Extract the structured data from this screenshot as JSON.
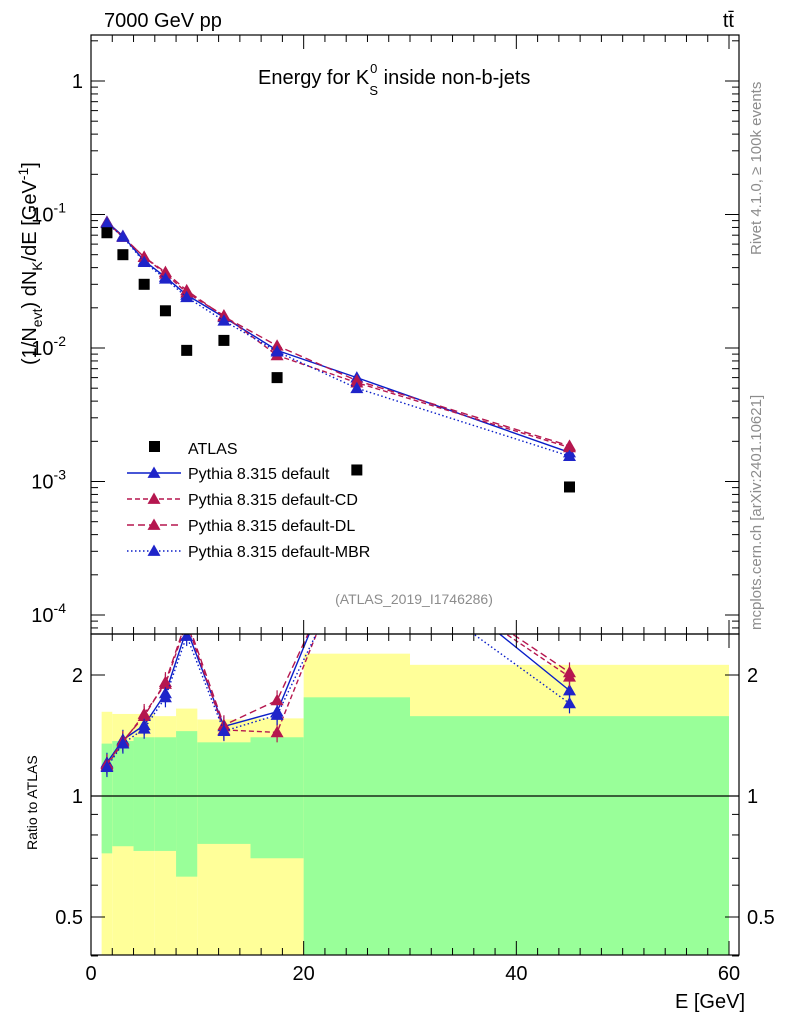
{
  "header": {
    "energy_label": "7000 GeV pp",
    "process_label": "tt̄",
    "title_main": "Energy for K",
    "title_sup": "0",
    "title_sub": "S",
    "title_rest": " inside non-b-jets",
    "ref_id": "(ATLAS_2019_I1746286)",
    "side_top": "Rivet 4.1.0, ≥ 100k events",
    "side_bottom": "mcplots.cern.ch [arXiv:2401.10621]"
  },
  "chart_data": {
    "type": "scatter",
    "xlabel": "E [GeV]",
    "ylabel": "(1/N_evt) dN_K/dE [GeV^-1]",
    "ylabel_ratio": "Ratio to ATLAS",
    "xlim": [
      0,
      61
    ],
    "ylim": [
      7e-05,
      2
    ],
    "ylim_ratio": [
      0.34,
      2.25
    ],
    "y_scale": "log",
    "x_ticks": [
      "0",
      "20",
      "40",
      "60"
    ],
    "y_ticks": [
      {
        "mant": "1",
        "exp": ""
      },
      {
        "mant": "10",
        "exp": "-1"
      },
      {
        "mant": "10",
        "exp": "-2"
      },
      {
        "mant": "10",
        "exp": "-3"
      },
      {
        "mant": "10",
        "exp": "-4"
      }
    ],
    "ratio_ticks": [
      "0.5",
      "1",
      "2"
    ],
    "bins": [
      {
        "lo": 1,
        "hi": 2,
        "inner": [
          0.72,
          1.35
        ],
        "outer": [
          0.32,
          1.62
        ]
      },
      {
        "lo": 2,
        "hi": 4,
        "inner": [
          0.75,
          1.37
        ],
        "outer": [
          0.36,
          1.6
        ]
      },
      {
        "lo": 4,
        "hi": 6,
        "inner": [
          0.73,
          1.4
        ],
        "outer": [
          0.36,
          1.6
        ]
      },
      {
        "lo": 6,
        "hi": 8,
        "inner": [
          0.73,
          1.4
        ],
        "outer": [
          0.36,
          1.58
        ]
      },
      {
        "lo": 8,
        "hi": 10,
        "inner": [
          0.63,
          1.45
        ],
        "outer": [
          0.36,
          1.65
        ]
      },
      {
        "lo": 10,
        "hi": 15,
        "inner": [
          0.76,
          1.36
        ],
        "outer": [
          0.36,
          1.55
        ]
      },
      {
        "lo": 15,
        "hi": 20,
        "inner": [
          0.7,
          1.4
        ],
        "outer": [
          0.36,
          1.56
        ]
      },
      {
        "lo": 20,
        "hi": 30,
        "inner": [
          0.36,
          1.76
        ],
        "outer": [
          0.36,
          2.26
        ]
      },
      {
        "lo": 30,
        "hi": 60,
        "inner": [
          0.36,
          1.58
        ],
        "outer": [
          0.36,
          2.12
        ]
      }
    ],
    "data": {
      "name": "ATLAS",
      "x": [
        1.5,
        3,
        5,
        7,
        9,
        12.5,
        17.5,
        25,
        45
      ],
      "y": [
        0.073,
        0.05,
        0.03,
        0.019,
        0.0096,
        0.0114,
        0.006,
        0.00122,
        0.00091
      ]
    },
    "series": [
      {
        "name": "Pythia 8.315 default",
        "color": "#0a1ec8",
        "dash": "",
        "marker": "#1f24c9",
        "x": [
          1.5,
          3,
          5,
          7,
          9,
          12.5,
          17.5,
          25,
          45
        ],
        "y": [
          0.088,
          0.069,
          0.045,
          0.034,
          0.025,
          0.017,
          0.0096,
          0.006,
          0.00165
        ],
        "ratio": [
          1.21,
          1.38,
          1.5,
          1.8,
          2.6,
          1.49,
          1.62,
          4.9,
          1.83
        ]
      },
      {
        "name": "Pythia 8.315 default-CD",
        "color": "#b5174f",
        "dash": "5,3",
        "marker": "#b5174f",
        "x": [
          1.5,
          3,
          5,
          7,
          9,
          12.5,
          17.5,
          25,
          45
        ],
        "y": [
          0.087,
          0.068,
          0.048,
          0.036,
          0.026,
          0.0175,
          0.0088,
          0.0055,
          0.0018
        ],
        "ratio": [
          1.19,
          1.36,
          1.6,
          1.9,
          2.7,
          1.46,
          1.44,
          4.5,
          1.98
        ]
      },
      {
        "name": "Pythia 8.315 default-DL",
        "color": "#b5174f",
        "dash": "7,4",
        "marker": "#b5174f",
        "x": [
          1.5,
          3,
          5,
          7,
          9,
          12.5,
          17.5,
          25,
          45
        ],
        "y": [
          0.087,
          0.068,
          0.048,
          0.037,
          0.027,
          0.0172,
          0.0104,
          0.0057,
          0.00185
        ],
        "ratio": [
          1.2,
          1.37,
          1.58,
          1.92,
          2.75,
          1.5,
          1.73,
          4.6,
          2.03
        ]
      },
      {
        "name": "Pythia 8.315 default-MBR",
        "color": "#0a1ec8",
        "dash": "1.5,2.5",
        "marker": "#1f24c9",
        "x": [
          1.5,
          3,
          5,
          7,
          9,
          12.5,
          17.5,
          25,
          45
        ],
        "y": [
          0.086,
          0.068,
          0.044,
          0.033,
          0.024,
          0.016,
          0.0094,
          0.005,
          0.00155
        ],
        "ratio": [
          1.18,
          1.35,
          1.47,
          1.76,
          2.5,
          1.45,
          1.59,
          4.1,
          1.7
        ]
      }
    ],
    "legend_position": "middle-left"
  }
}
